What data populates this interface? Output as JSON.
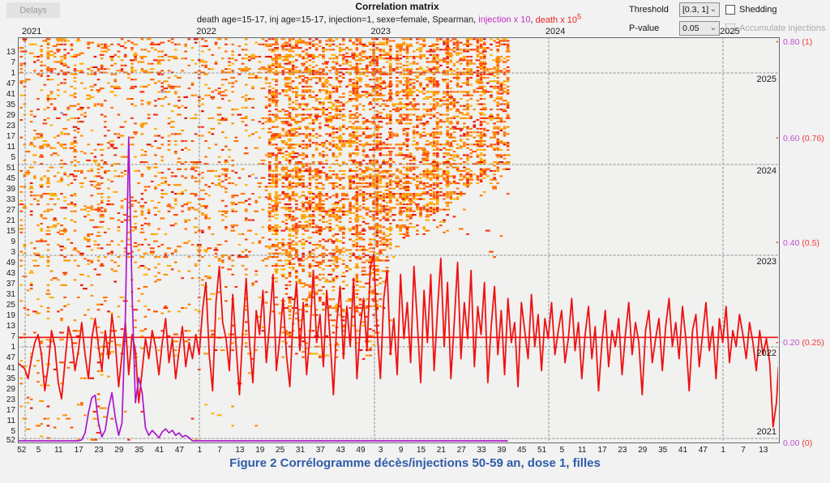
{
  "toolbar": {
    "delays_label": "Delays"
  },
  "header": {
    "title": "Correlation matrix",
    "subtitle_black": "death age=15-17, inj age=15-17, injection=1, sexe=female, Spearman, ",
    "subtitle_injection": "injection x 10",
    "subtitle_sep": ", ",
    "subtitle_death": "death x 10",
    "subtitle_death_sup": "5"
  },
  "controls": {
    "threshold_label": "Threshold",
    "threshold_value": "[0.3, 1]",
    "shedding_label": "Shedding",
    "pvalue_label": "P-value",
    "pvalue_value": "0.05",
    "accumulate_label": "Accumulate injections",
    "chevron": "⌄"
  },
  "caption": "Figure 2 Corrélogramme décès/injections 50-59 an, dose 1, filles",
  "chart_data": {
    "type": "heatmap",
    "title": "Correlation matrix",
    "description": "Lag correlation matrix (weeks on both axes, 2020-W52 to 2025) with overlaid weekly series: death x 10^5 (red, right red scale 0-1) and injection x 10 (purple, right magenta scale 0-0.80).",
    "axes": {
      "week_tick_weeks": [
        0,
        5,
        11,
        17,
        23,
        29,
        35,
        41,
        47,
        53,
        59,
        65,
        71,
        77,
        83,
        89,
        95,
        101,
        107,
        113,
        119,
        125,
        131,
        137,
        143,
        149,
        155,
        161,
        167,
        173,
        179,
        185,
        191,
        197,
        203,
        209,
        215,
        221
      ],
      "week_tick_labels": [
        "52",
        "5",
        "11",
        "17",
        "23",
        "29",
        "35",
        "41",
        "47",
        "1",
        "7",
        "13",
        "19",
        "25",
        "31",
        "37",
        "43",
        "49",
        "3",
        "9",
        "15",
        "21",
        "27",
        "33",
        "39",
        "45",
        "51",
        "5",
        "11",
        "17",
        "23",
        "29",
        "35",
        "41",
        "47",
        "1",
        "7",
        "13"
      ],
      "year_weeks": [
        1,
        53,
        105,
        157,
        209
      ],
      "year_labels": [
        "2021",
        "2022",
        "2023",
        "2024",
        "2025"
      ],
      "right_scale_ticks": [
        {
          "injection": "0.80",
          "death": "(1)",
          "value": 1.0
        },
        {
          "injection": "0.60",
          "death": "(0.76)",
          "value": 0.76
        },
        {
          "injection": "0.40",
          "death": "(0.5)",
          "value": 0.5
        },
        {
          "injection": "0.20",
          "death": "(0.25)",
          "value": 0.25
        },
        {
          "injection": "0.00",
          "death": "(0)",
          "value": 0.0
        }
      ],
      "x_range_weeks": 227,
      "y_range_weeks": 230,
      "grid": "dashed"
    },
    "mean_death_value": 0.263,
    "series": [
      {
        "name": "death x 10^5",
        "color": "#ee1212",
        "scale": "death",
        "values": [
          0.2,
          0.185,
          0.16,
          0.21,
          0.25,
          0.27,
          0.22,
          0.13,
          0.19,
          0.28,
          0.24,
          0.15,
          0.11,
          0.2,
          0.29,
          0.26,
          0.18,
          0.23,
          0.3,
          0.22,
          0.16,
          0.26,
          0.31,
          0.24,
          0.18,
          0.28,
          0.21,
          0.32,
          0.25,
          0.14,
          0.22,
          0.3,
          0.17,
          0.27,
          0.23,
          0.1,
          0.18,
          0.26,
          0.21,
          0.28,
          0.24,
          0.17,
          0.25,
          0.31,
          0.2,
          0.26,
          0.16,
          0.23,
          0.29,
          0.19,
          0.25,
          0.21,
          0.27,
          0.22,
          0.33,
          0.4,
          0.22,
          0.13,
          0.35,
          0.44,
          0.3,
          0.26,
          0.18,
          0.37,
          0.24,
          0.12,
          0.28,
          0.41,
          0.25,
          0.15,
          0.33,
          0.27,
          0.38,
          0.2,
          0.3,
          0.42,
          0.18,
          0.26,
          0.36,
          0.22,
          0.14,
          0.31,
          0.4,
          0.23,
          0.35,
          0.17,
          0.27,
          0.43,
          0.25,
          0.32,
          0.19,
          0.38,
          0.26,
          0.12,
          0.3,
          0.39,
          0.21,
          0.34,
          0.24,
          0.41,
          0.16,
          0.29,
          0.36,
          0.23,
          0.44,
          0.47,
          0.28,
          0.16,
          0.36,
          0.43,
          0.22,
          0.31,
          0.17,
          0.42,
          0.26,
          0.35,
          0.2,
          0.44,
          0.3,
          0.15,
          0.38,
          0.25,
          0.42,
          0.18,
          0.33,
          0.46,
          0.24,
          0.4,
          0.16,
          0.3,
          0.45,
          0.21,
          0.35,
          0.26,
          0.43,
          0.19,
          0.34,
          0.27,
          0.4,
          0.15,
          0.29,
          0.39,
          0.22,
          0.33,
          0.17,
          0.36,
          0.25,
          0.3,
          0.14,
          0.35,
          0.28,
          0.21,
          0.37,
          0.24,
          0.32,
          0.18,
          0.31,
          0.26,
          0.35,
          0.22,
          0.28,
          0.33,
          0.2,
          0.26,
          0.36,
          0.23,
          0.3,
          0.16,
          0.27,
          0.34,
          0.21,
          0.29,
          0.13,
          0.25,
          0.33,
          0.19,
          0.28,
          0.24,
          0.31,
          0.17,
          0.27,
          0.35,
          0.22,
          0.3,
          0.25,
          0.12,
          0.28,
          0.33,
          0.2,
          0.26,
          0.31,
          0.18,
          0.29,
          0.36,
          0.24,
          0.3,
          0.21,
          0.34,
          0.26,
          0.13,
          0.28,
          0.32,
          0.19,
          0.27,
          0.35,
          0.23,
          0.29,
          0.16,
          0.31,
          0.25,
          0.34,
          0.2,
          0.28,
          0.24,
          0.32,
          0.27,
          0.21,
          0.3,
          0.25,
          0.18,
          0.28,
          0.22,
          0.26,
          0.2,
          0.04,
          0.1,
          0.19
        ]
      },
      {
        "name": "injection x 10",
        "color": "#ab16ce",
        "scale": "injection",
        "baseline": 0.004,
        "pre_baseline_weeks": 18,
        "active_values": [
          0.006,
          0.02,
          0.06,
          0.09,
          0.095,
          0.04,
          0.012,
          0.025,
          0.07,
          0.1,
          0.05,
          0.015,
          0.04,
          0.25,
          0.61,
          0.3,
          0.08,
          0.13,
          0.1,
          0.03,
          0.015,
          0.025,
          0.018,
          0.01,
          0.022,
          0.028,
          0.02,
          0.025,
          0.015,
          0.02,
          0.012,
          0.015,
          0.01
        ],
        "post_baseline_weeks": 95
      }
    ],
    "heatmap": {
      "palette": [
        [
          "#ffb000",
          0.17
        ],
        [
          "#ff9300",
          0.25
        ],
        [
          "#ff7300",
          0.22
        ],
        [
          "#ff4d00",
          0.16
        ],
        [
          "#f72c0c",
          0.13
        ],
        [
          "#e31000",
          0.07
        ]
      ],
      "blue_speck_color": "#8a8ae0",
      "blue_speck_prob": 0.003,
      "seed": 1337,
      "wx_max": 146,
      "wy_max": 230,
      "regions_note": "densities of correlation dashes per zone, week coords from 2020-W52",
      "left_sparse_density": 0.1,
      "left_top_band_density": 0.13,
      "dense_blob_density": 0.34,
      "blob_fringe_density": 0.1,
      "diag_cut": {
        "wx0": 105,
        "rate": 1.32,
        "fringe_weeks": 9
      },
      "tail": {
        "wx": [
          74,
          110
        ],
        "wy": [
          46,
          104
        ],
        "density_upper": 0.24,
        "density_lower": 0.1
      },
      "left_mid_low_density": 0.06,
      "left_low_density": 0.045,
      "bottom_left_density": 0.035,
      "bottom_mid_density": 0.007
    }
  }
}
